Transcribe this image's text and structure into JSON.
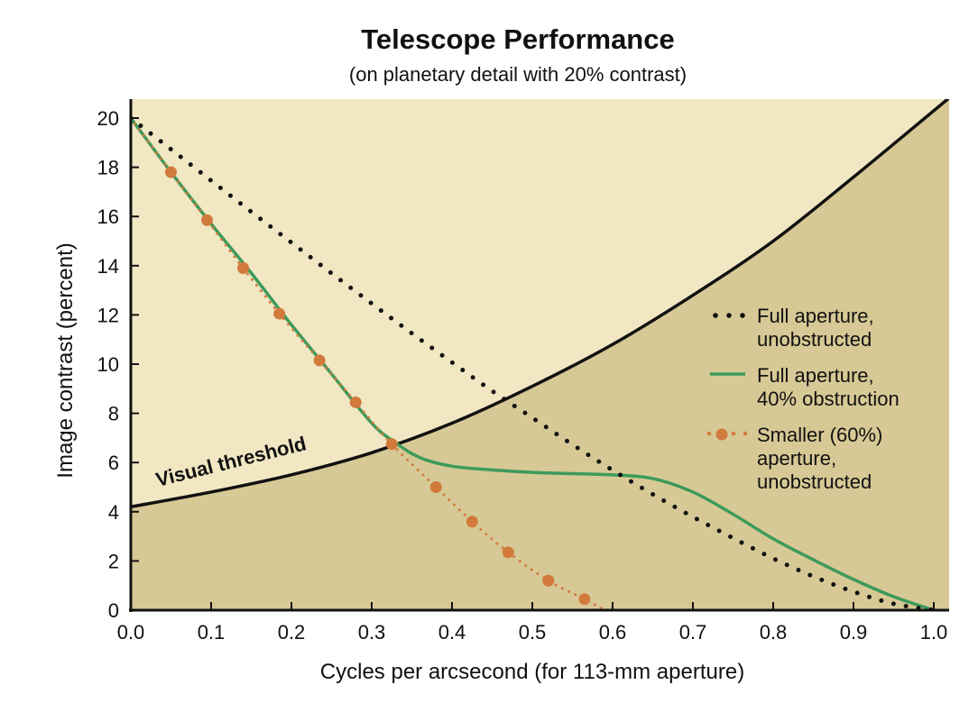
{
  "chart_data": {
    "type": "line",
    "title": "Telescope Performance",
    "subtitle": "(on planetary detail with 20% contrast)",
    "xlabel": "Cycles per arcsecond (for 113-mm aperture)",
    "ylabel": "Image contrast (percent)",
    "xlim": [
      0,
      1.0
    ],
    "ylim": [
      0,
      20
    ],
    "xticks": [
      "0.0",
      "0.1",
      "0.2",
      "0.3",
      "0.4",
      "0.5",
      "0.6",
      "0.7",
      "0.8",
      "0.9",
      "1.0"
    ],
    "yticks": [
      "0",
      "2",
      "4",
      "6",
      "8",
      "10",
      "12",
      "14",
      "16",
      "18",
      "20"
    ],
    "grid": false,
    "legend_position": "right",
    "colors": {
      "light_region": "#f1e7c3",
      "dark_region": "#d7c995",
      "green": "#3d9a5b",
      "orange": "#d17a3c",
      "black": "#111111"
    },
    "threshold": {
      "label": "Visual threshold",
      "x": [
        0,
        0.1,
        0.2,
        0.3,
        0.4,
        0.5,
        0.6,
        0.7,
        0.8,
        0.9,
        1.0
      ],
      "y": [
        4.2,
        4.8,
        5.5,
        6.4,
        7.6,
        9.1,
        10.8,
        12.8,
        15.0,
        17.6,
        20.3
      ]
    },
    "series": [
      {
        "name": "Full aperture, unobstructed",
        "legend_lines": [
          "Full aperture,",
          "unobstructed"
        ],
        "style": "dotted",
        "x": [
          0,
          0.05,
          0.1,
          0.15,
          0.2,
          0.25,
          0.3,
          0.35,
          0.4,
          0.45,
          0.5,
          0.55,
          0.6,
          0.65,
          0.7,
          0.75,
          0.8,
          0.85,
          0.9,
          0.95,
          1.0
        ],
        "y": [
          20,
          18.73,
          17.46,
          16.19,
          14.94,
          13.69,
          12.46,
          11.25,
          10.07,
          8.91,
          7.82,
          6.73,
          5.69,
          4.71,
          3.79,
          2.93,
          2.1,
          1.37,
          0.75,
          0.26,
          0
        ]
      },
      {
        "name": "Full aperture, 40% obstruction",
        "legend_lines": [
          "Full aperture,",
          "40% obstruction"
        ],
        "style": "solid",
        "x": [
          0,
          0.05,
          0.1,
          0.15,
          0.2,
          0.25,
          0.3,
          0.33,
          0.36,
          0.4,
          0.45,
          0.5,
          0.55,
          0.6,
          0.65,
          0.7,
          0.75,
          0.8,
          0.85,
          0.9,
          0.95,
          1.0
        ],
        "y": [
          20,
          17.8,
          15.7,
          13.7,
          11.6,
          9.6,
          7.6,
          6.8,
          6.2,
          5.85,
          5.7,
          5.6,
          5.55,
          5.5,
          5.35,
          4.8,
          3.9,
          2.9,
          2.05,
          1.25,
          0.55,
          0
        ]
      },
      {
        "name": "Smaller (60%) aperture, unobstructed",
        "legend_lines": [
          "Smaller (60%)",
          "aperture,",
          "unobstructed"
        ],
        "style": "dotted-markers",
        "x": [
          0,
          0.05,
          0.095,
          0.14,
          0.185,
          0.235,
          0.28,
          0.325,
          0.38,
          0.425,
          0.47,
          0.52,
          0.565,
          0.59
        ],
        "y": [
          20,
          17.8,
          15.85,
          13.9,
          12.05,
          10.15,
          8.45,
          6.75,
          5.0,
          3.6,
          2.35,
          1.2,
          0.45,
          0
        ],
        "markers": [
          false,
          true,
          true,
          true,
          true,
          true,
          true,
          true,
          true,
          true,
          true,
          true,
          true,
          false
        ]
      }
    ]
  }
}
